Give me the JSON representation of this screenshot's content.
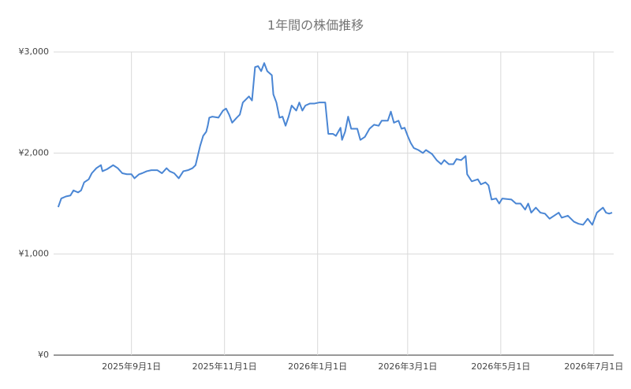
{
  "chart_data": {
    "type": "line",
    "title": "1年間の株価推移",
    "color": "#4a86d4",
    "grid": true,
    "xlim": [
      "2025-07-12",
      "2026-07-14"
    ],
    "xticks": [
      {
        "value": "2025-09-01",
        "label": "2025年9月1日"
      },
      {
        "value": "2025-11-01",
        "label": "2025年11月1日"
      },
      {
        "value": "2026-01-01",
        "label": "2026年1月1日"
      },
      {
        "value": "2026-03-01",
        "label": "2026年3月1日"
      },
      {
        "value": "2026-05-01",
        "label": "2026年5月1日"
      },
      {
        "value": "2026-07-01",
        "label": "2026年7月1日"
      }
    ],
    "ylim": [
      0,
      3000
    ],
    "yticks": [
      {
        "value": 0,
        "label": "¥0"
      },
      {
        "value": 1000,
        "label": "¥1,000"
      },
      {
        "value": 2000,
        "label": "¥2,000"
      },
      {
        "value": 3000,
        "label": "¥3,000"
      }
    ],
    "x": [
      "2025-07-15",
      "2025-07-17",
      "2025-07-20",
      "2025-07-23",
      "2025-07-25",
      "2025-07-28",
      "2025-07-30",
      "2025-08-01",
      "2025-08-04",
      "2025-08-06",
      "2025-08-09",
      "2025-08-12",
      "2025-08-13",
      "2025-08-16",
      "2025-08-20",
      "2025-08-23",
      "2025-08-26",
      "2025-08-29",
      "2025-09-01",
      "2025-09-03",
      "2025-09-06",
      "2025-09-08",
      "2025-09-11",
      "2025-09-14",
      "2025-09-18",
      "2025-09-21",
      "2025-09-24",
      "2025-09-26",
      "2025-09-29",
      "2025-10-02",
      "2025-10-05",
      "2025-10-08",
      "2025-10-11",
      "2025-10-13",
      "2025-10-16",
      "2025-10-18",
      "2025-10-20",
      "2025-10-21",
      "2025-10-22",
      "2025-10-24",
      "2025-10-28",
      "2025-10-31",
      "2025-11-02",
      "2025-11-04",
      "2025-11-06",
      "2025-11-09",
      "2025-11-11",
      "2025-11-13",
      "2025-11-17",
      "2025-11-19",
      "2025-11-21",
      "2025-11-23",
      "2025-11-25",
      "2025-11-27",
      "2025-11-29",
      "2025-12-02",
      "2025-12-03",
      "2025-12-05",
      "2025-12-07",
      "2025-12-09",
      "2025-12-11",
      "2025-12-13",
      "2025-12-15",
      "2025-12-18",
      "2025-12-20",
      "2025-12-22",
      "2025-12-24",
      "2025-12-27",
      "2025-12-30",
      "2026-01-02",
      "2026-01-06",
      "2026-01-08",
      "2026-01-11",
      "2026-01-13",
      "2026-01-16",
      "2026-01-17",
      "2026-01-19",
      "2026-01-21",
      "2026-01-23",
      "2026-01-27",
      "2026-01-29",
      "2026-02-01",
      "2026-02-04",
      "2026-02-07",
      "2026-02-10",
      "2026-02-12",
      "2026-02-16",
      "2026-02-18",
      "2026-02-20",
      "2026-02-23",
      "2026-02-25",
      "2026-02-27",
      "2026-03-01",
      "2026-03-03",
      "2026-03-05",
      "2026-03-08",
      "2026-03-11",
      "2026-03-13",
      "2026-03-17",
      "2026-03-20",
      "2026-03-23",
      "2026-03-25",
      "2026-03-28",
      "2026-03-31",
      "2026-04-02",
      "2026-04-05",
      "2026-04-08",
      "2026-04-09",
      "2026-04-12",
      "2026-04-16",
      "2026-04-18",
      "2026-04-21",
      "2026-04-23",
      "2026-04-25",
      "2026-04-28",
      "2026-04-30",
      "2026-05-02",
      "2026-05-08",
      "2026-05-11",
      "2026-05-14",
      "2026-05-17",
      "2026-05-19",
      "2026-05-21",
      "2026-05-24",
      "2026-05-27",
      "2026-05-30",
      "2026-06-02",
      "2026-06-05",
      "2026-06-08",
      "2026-06-10",
      "2026-06-14",
      "2026-06-18",
      "2026-06-21",
      "2026-06-24",
      "2026-06-27",
      "2026-06-30",
      "2026-07-03",
      "2026-07-07",
      "2026-07-09",
      "2026-07-11",
      "2026-07-13"
    ],
    "values": [
      1465,
      1550,
      1570,
      1580,
      1630,
      1610,
      1630,
      1710,
      1740,
      1800,
      1850,
      1880,
      1820,
      1840,
      1880,
      1850,
      1800,
      1790,
      1790,
      1750,
      1790,
      1800,
      1820,
      1830,
      1830,
      1800,
      1850,
      1820,
      1800,
      1750,
      1820,
      1830,
      1850,
      1880,
      2070,
      2170,
      2210,
      2270,
      2350,
      2360,
      2350,
      2420,
      2440,
      2380,
      2300,
      2350,
      2380,
      2500,
      2560,
      2520,
      2850,
      2860,
      2810,
      2890,
      2810,
      2770,
      2580,
      2500,
      2350,
      2360,
      2270,
      2360,
      2470,
      2420,
      2500,
      2420,
      2470,
      2490,
      2490,
      2500,
      2500,
      2190,
      2190,
      2170,
      2250,
      2130,
      2210,
      2360,
      2240,
      2240,
      2130,
      2160,
      2240,
      2280,
      2270,
      2320,
      2320,
      2410,
      2300,
      2320,
      2240,
      2250,
      2170,
      2100,
      2050,
      2030,
      2000,
      2030,
      1990,
      1930,
      1890,
      1930,
      1890,
      1890,
      1940,
      1930,
      1970,
      1790,
      1720,
      1740,
      1690,
      1710,
      1680,
      1540,
      1550,
      1500,
      1550,
      1540,
      1500,
      1500,
      1440,
      1500,
      1410,
      1460,
      1410,
      1400,
      1350,
      1380,
      1410,
      1360,
      1380,
      1320,
      1300,
      1290,
      1350,
      1290,
      1410,
      1460,
      1410,
      1400,
      1410
    ]
  }
}
